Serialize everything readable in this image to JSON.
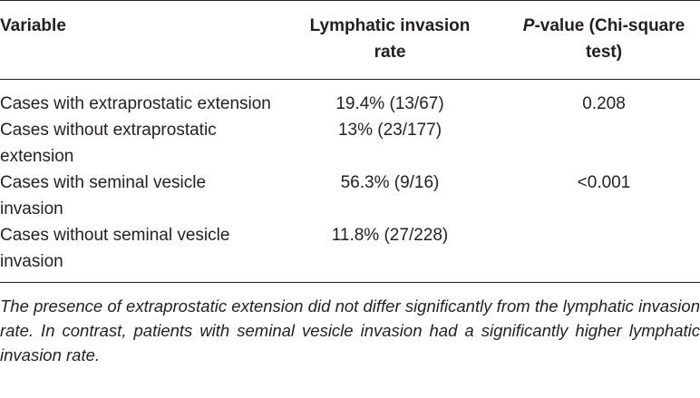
{
  "table": {
    "header": [
      "Variable",
      "Lymphatic invasion rate",
      {
        "italic": "P",
        "rest": "-value (Chi-square test)"
      }
    ],
    "rows": [
      [
        "Cases with extraprostatic extension",
        "19.4% (13/67)",
        "0.208"
      ],
      [
        "Cases without extraprostatic extension",
        "13% (23/177)",
        ""
      ],
      [
        "Cases with seminal vesicle invasion",
        "56.3% (9/16)",
        "<0.001"
      ],
      [
        "Cases without seminal vesicle invasion",
        "11.8% (27/228)",
        ""
      ]
    ],
    "footnote": "The presence of extraprostatic extension did not differ significantly from the lymphatic invasion rate. In contrast, patients with seminal vesicle invasion had a significantly higher lymphatic invasion rate."
  }
}
